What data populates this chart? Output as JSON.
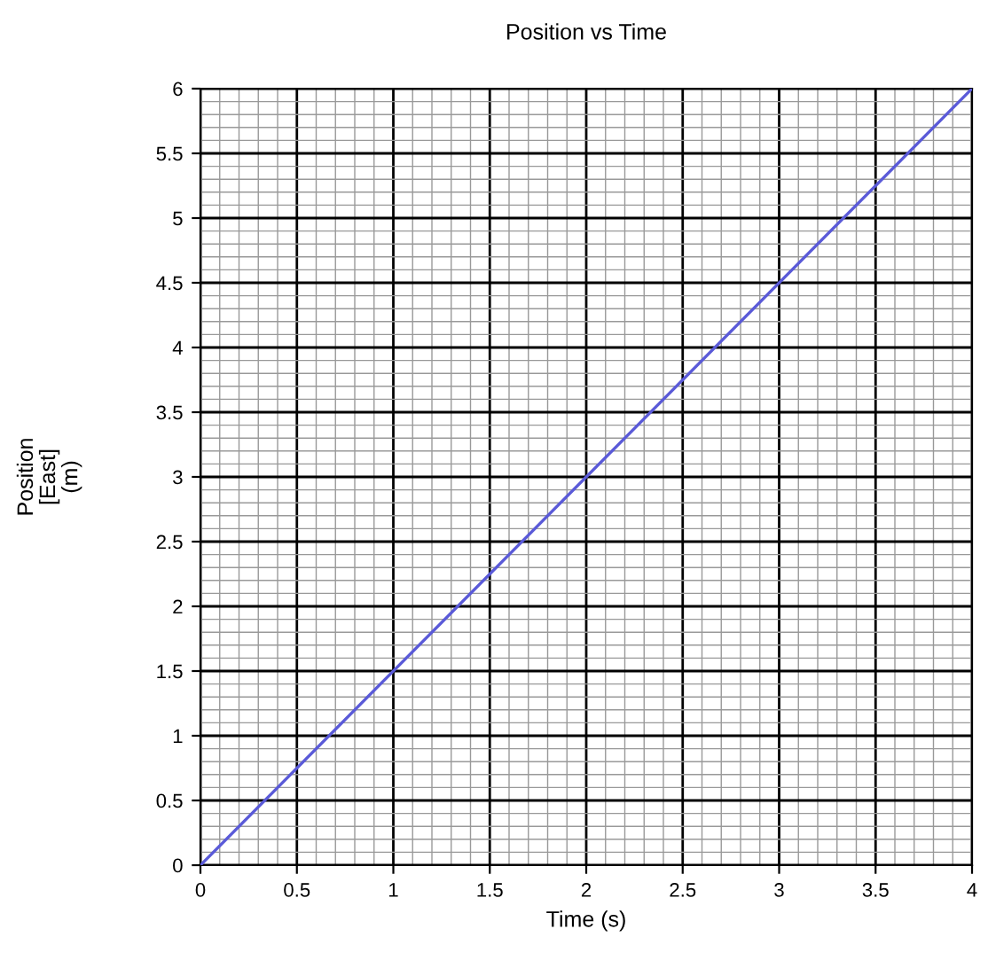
{
  "chart_data": {
    "type": "line",
    "title": "Position vs Time",
    "xlabel": "Time (s)",
    "ylabel": "Position\n[East]\n(m)",
    "x": [
      0,
      4
    ],
    "series": [
      {
        "color": "#5a5ad8",
        "values": [
          0,
          6
        ]
      }
    ],
    "xlim": [
      0,
      4
    ],
    "ylim": [
      0,
      6
    ],
    "xticks": [
      0,
      0.5,
      1,
      1.5,
      2,
      2.5,
      3,
      3.5,
      4
    ],
    "yticks": [
      0,
      0.5,
      1,
      1.5,
      2,
      2.5,
      3,
      3.5,
      4,
      4.5,
      5,
      5.5,
      6
    ],
    "grid": true,
    "legend": false
  }
}
